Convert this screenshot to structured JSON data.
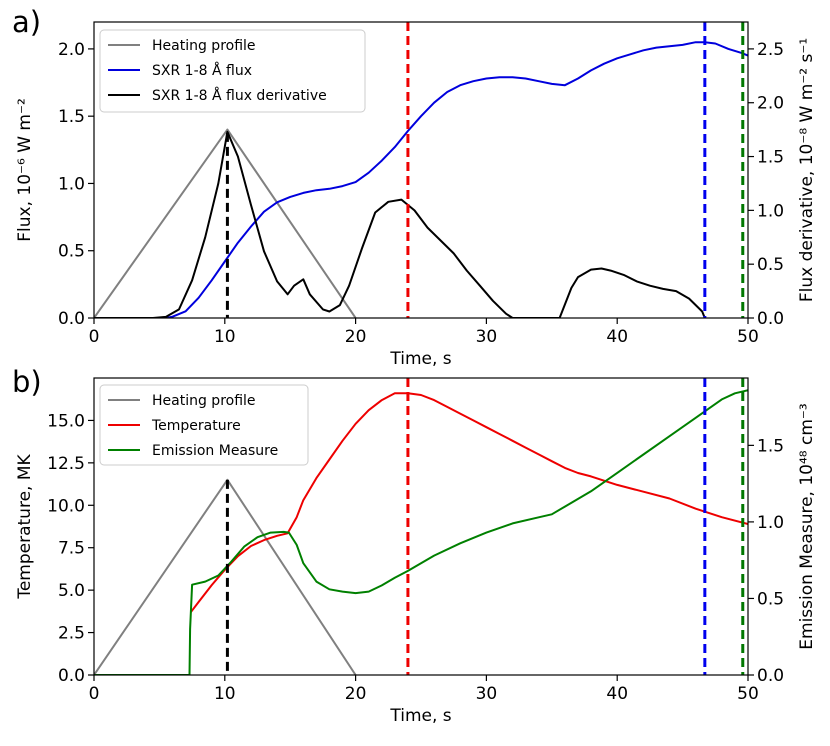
{
  "chart_data": [
    {
      "panel_label": "a)",
      "type": "line",
      "xlabel": "Time, s",
      "ylabel": "Flux, 10⁻⁶ W m⁻²",
      "ylabel_right": "Flux derivative, 10⁻⁸ W m⁻² s⁻¹",
      "xlim": [
        0,
        50
      ],
      "ylim": [
        0,
        2.2
      ],
      "ylim_right": [
        0,
        2.75
      ],
      "xticks": [
        "0",
        "10",
        "20",
        "30",
        "40",
        "50"
      ],
      "yticks": [
        "0.0",
        "0.5",
        "1.0",
        "1.5",
        "2.0"
      ],
      "yticks_right": [
        "0.0",
        "0.5",
        "1.0",
        "1.5",
        "2.0",
        "2.5"
      ],
      "legend_position": "top-left",
      "series": [
        {
          "name": "Heating profile",
          "color": "#808080",
          "axis": "left",
          "x": [
            0,
            10.2,
            20
          ],
          "y": [
            0,
            1.4,
            0
          ]
        },
        {
          "name": "SXR 1-8 Å flux",
          "color": "#0000dd",
          "axis": "left",
          "x": [
            5.5,
            6,
            7,
            8,
            9,
            10,
            11,
            12,
            13,
            14,
            15,
            16,
            17,
            18,
            19,
            20,
            21,
            22,
            23,
            24,
            25,
            26,
            27,
            28,
            29,
            30,
            31,
            32,
            33,
            34,
            35,
            36,
            37,
            38,
            39,
            40,
            41,
            42,
            43,
            44,
            45,
            46,
            46.7,
            47.5,
            48.5,
            49.5,
            50
          ],
          "y": [
            0,
            0.01,
            0.05,
            0.15,
            0.28,
            0.42,
            0.56,
            0.68,
            0.79,
            0.86,
            0.9,
            0.93,
            0.95,
            0.96,
            0.98,
            1.01,
            1.08,
            1.17,
            1.27,
            1.39,
            1.5,
            1.6,
            1.68,
            1.73,
            1.76,
            1.78,
            1.79,
            1.79,
            1.78,
            1.76,
            1.74,
            1.73,
            1.78,
            1.84,
            1.89,
            1.93,
            1.96,
            1.99,
            2.01,
            2.02,
            2.03,
            2.05,
            2.05,
            2.04,
            2.0,
            1.97,
            1.95
          ]
        },
        {
          "name": "SXR 1-8 Å flux derivative",
          "color": "#000000",
          "axis": "right",
          "x": [
            0,
            4.5,
            5.5,
            6.5,
            7.5,
            8.5,
            9.5,
            10.2,
            11,
            12,
            13,
            14,
            14.8,
            15.3,
            16,
            16.5,
            17.5,
            18,
            18.8,
            19.5,
            20.5,
            21.5,
            22.5,
            23.5,
            24.5,
            25.5,
            26.5,
            27.5,
            28.5,
            29.5,
            30.5,
            31.5,
            32,
            35.6,
            36.5,
            37,
            38,
            38.8,
            39.5,
            40.5,
            41.5,
            42.5,
            43.5,
            44.5,
            45.5,
            46.5,
            46.7
          ],
          "y": [
            0,
            0,
            0.01,
            0.08,
            0.35,
            0.75,
            1.25,
            1.73,
            1.5,
            1.05,
            0.62,
            0.34,
            0.22,
            0.3,
            0.36,
            0.22,
            0.08,
            0.06,
            0.12,
            0.3,
            0.65,
            0.98,
            1.08,
            1.1,
            1.0,
            0.84,
            0.72,
            0.6,
            0.44,
            0.3,
            0.16,
            0.04,
            0,
            0,
            0.28,
            0.38,
            0.45,
            0.46,
            0.44,
            0.4,
            0.34,
            0.3,
            0.27,
            0.25,
            0.18,
            0.06,
            0
          ]
        }
      ],
      "vlines": [
        {
          "x": 10.2,
          "color": "#000000",
          "ymax_right": 1.72
        },
        {
          "x": 24,
          "color": "#ee0000"
        },
        {
          "x": 46.7,
          "color": "#0000ee"
        },
        {
          "x": 49.6,
          "color": "#007700"
        }
      ]
    },
    {
      "panel_label": "b)",
      "type": "line",
      "xlabel": "Time, s",
      "ylabel": "Temperature, MK",
      "ylabel_right": "Emission Measure, 10⁴⁸ cm⁻³",
      "xlim": [
        0,
        50
      ],
      "ylim": [
        0,
        17.5
      ],
      "ylim_right": [
        0,
        1.94
      ],
      "xticks": [
        "0",
        "10",
        "20",
        "30",
        "40",
        "50"
      ],
      "yticks": [
        "0.0",
        "2.5",
        "5.0",
        "7.5",
        "10.0",
        "12.5",
        "15.0"
      ],
      "yticks_right": [
        "0.0",
        "0.5",
        "1.0",
        "1.5"
      ],
      "legend_position": "top-left",
      "series": [
        {
          "name": "Heating profile",
          "color": "#808080",
          "axis": "left",
          "x": [
            0,
            10.2,
            20
          ],
          "y": [
            0,
            11.5,
            0
          ]
        },
        {
          "name": "Temperature",
          "color": "#ee0000",
          "axis": "left",
          "x": [
            7.4,
            8,
            9,
            10,
            11,
            12,
            13,
            14,
            14.8,
            15.5,
            16,
            17,
            18,
            19,
            20,
            21,
            22,
            23,
            24,
            25,
            26,
            27,
            28,
            29,
            30,
            31,
            32,
            33,
            34,
            35,
            36,
            37,
            38,
            40,
            42,
            44,
            46,
            48,
            50
          ],
          "y": [
            3.7,
            4.3,
            5.3,
            6.2,
            7.0,
            7.6,
            7.95,
            8.2,
            8.35,
            9.3,
            10.3,
            11.6,
            12.7,
            13.8,
            14.8,
            15.6,
            16.2,
            16.6,
            16.6,
            16.5,
            16.2,
            15.8,
            15.4,
            15.0,
            14.6,
            14.2,
            13.8,
            13.4,
            13.0,
            12.6,
            12.2,
            11.9,
            11.7,
            11.2,
            10.8,
            10.4,
            9.8,
            9.3,
            8.9
          ]
        },
        {
          "name": "Emission Measure",
          "color": "#008000",
          "axis": "right",
          "x": [
            0,
            7.3,
            7.35,
            7.5,
            8.5,
            9.5,
            10.5,
            11.5,
            12.5,
            13.5,
            14.5,
            14.9,
            15.5,
            16,
            17,
            18,
            19,
            20,
            21,
            22,
            23,
            24,
            26,
            28,
            30,
            32,
            34,
            35,
            36,
            38,
            40,
            42,
            44,
            46,
            47,
            48,
            49,
            50
          ],
          "y": [
            0,
            0,
            0.3,
            0.59,
            0.61,
            0.65,
            0.74,
            0.84,
            0.9,
            0.93,
            0.935,
            0.93,
            0.85,
            0.73,
            0.61,
            0.56,
            0.545,
            0.535,
            0.545,
            0.585,
            0.635,
            0.68,
            0.78,
            0.86,
            0.93,
            0.99,
            1.03,
            1.05,
            1.1,
            1.2,
            1.32,
            1.44,
            1.56,
            1.68,
            1.74,
            1.8,
            1.84,
            1.86
          ]
        }
      ],
      "vlines": [
        {
          "x": 10.2,
          "color": "#000000",
          "ymax": 11.5
        },
        {
          "x": 24,
          "color": "#ee0000"
        },
        {
          "x": 46.7,
          "color": "#0000ee"
        },
        {
          "x": 49.6,
          "color": "#007700"
        }
      ]
    }
  ]
}
